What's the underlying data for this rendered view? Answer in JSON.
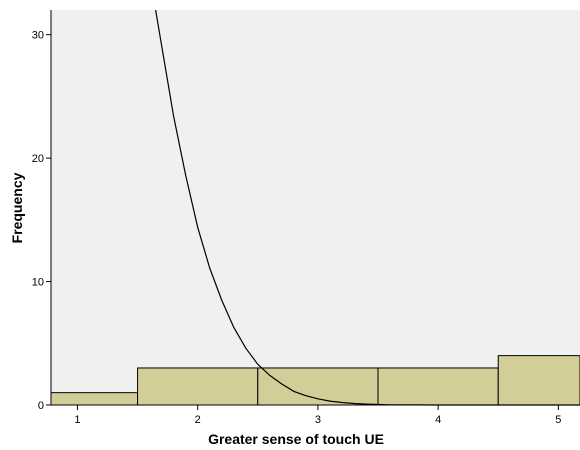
{
  "chart_data": {
    "type": "bar",
    "subtype": "histogram",
    "xlabel": "Greater sense of touch UE",
    "ylabel": "Frequency",
    "xlim": [
      0.78,
      5.18
    ],
    "ylim": [
      0,
      32
    ],
    "x_ticks": [
      1,
      2,
      3,
      4,
      5
    ],
    "y_ticks": [
      0,
      10,
      20,
      30
    ],
    "bins": [
      {
        "from": 0.5,
        "to": 1.5,
        "value": 1
      },
      {
        "from": 1.5,
        "to": 2.5,
        "value": 3
      },
      {
        "from": 2.5,
        "to": 3.5,
        "value": 3
      },
      {
        "from": 3.5,
        "to": 4.5,
        "value": 3
      },
      {
        "from": 4.5,
        "to": 5.5,
        "value": 4
      }
    ],
    "curve": {
      "type": "line",
      "description": "fitted distribution curve",
      "points": [
        [
          1.65,
          32
        ],
        [
          1.8,
          23.4
        ],
        [
          1.9,
          18.6
        ],
        [
          2.0,
          14.4
        ],
        [
          2.1,
          11.1
        ],
        [
          2.2,
          8.5
        ],
        [
          2.3,
          6.3
        ],
        [
          2.4,
          4.6
        ],
        [
          2.5,
          3.3
        ],
        [
          2.6,
          2.4
        ],
        [
          2.7,
          1.7
        ],
        [
          2.8,
          1.1
        ],
        [
          2.9,
          0.75
        ],
        [
          3.0,
          0.5
        ],
        [
          3.1,
          0.32
        ],
        [
          3.2,
          0.2
        ],
        [
          3.3,
          0.12
        ],
        [
          3.4,
          0.07
        ],
        [
          3.5,
          0.04
        ],
        [
          3.6,
          0.02
        ],
        [
          3.8,
          0.008
        ],
        [
          4.0,
          0.003
        ],
        [
          4.2,
          0.001
        ],
        [
          4.5,
          0.0
        ],
        [
          5.18,
          0.0
        ]
      ]
    },
    "grid": false,
    "colors": {
      "plot_background": "#f0f0f0",
      "bar_fill": "#d3ce97",
      "bar_stroke": "#000000",
      "curve": "#000000"
    }
  }
}
